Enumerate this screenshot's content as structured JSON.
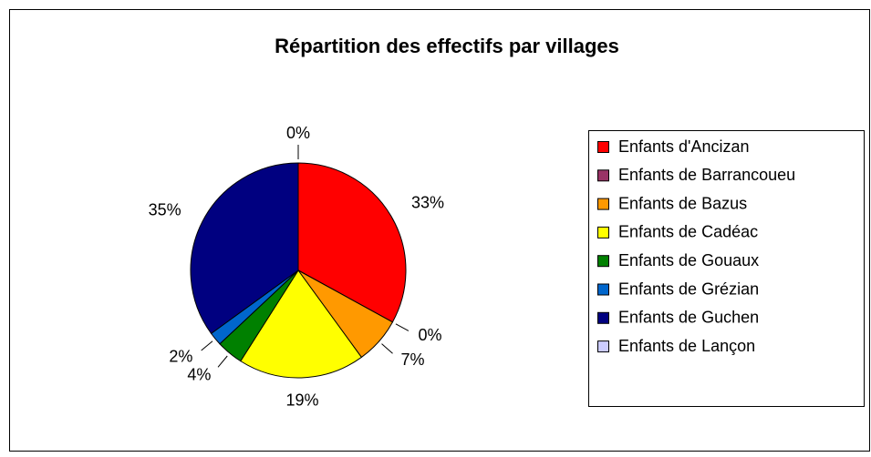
{
  "chart_data": {
    "type": "pie",
    "title": "Répartition des effectifs par villages",
    "categories": [
      "Enfants d'Ancizan",
      "Enfants de Barrancoueu",
      "Enfants de Bazus",
      "Enfants de Cadéac",
      "Enfants de Gouaux",
      "Enfants de Grézian",
      "Enfants de Guchen",
      "Enfants de Lançon"
    ],
    "values": [
      33,
      0,
      7,
      19,
      4,
      2,
      35,
      0
    ],
    "value_labels": [
      "33%",
      "0%",
      "7%",
      "19%",
      "4%",
      "2%",
      "35%",
      "0%"
    ],
    "colors": [
      "#ff0000",
      "#993366",
      "#ff9900",
      "#ffff00",
      "#008000",
      "#0066cc",
      "#000080",
      "#ccccff"
    ],
    "legend": "right"
  }
}
